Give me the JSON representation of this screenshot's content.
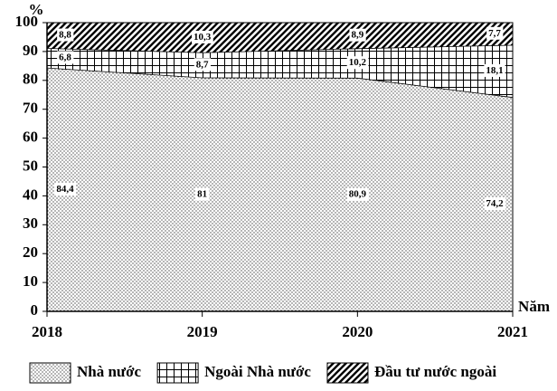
{
  "chart_data": {
    "type": "stacked-area",
    "x": [
      2018,
      2019,
      2020,
      2021
    ],
    "xlim": [
      2018,
      2021
    ],
    "xticks": [
      2018,
      2019,
      2020,
      2021
    ],
    "ylim": [
      0,
      100
    ],
    "yticks": [
      0,
      10,
      20,
      30,
      40,
      50,
      60,
      70,
      80,
      90,
      100
    ],
    "y_label": "%",
    "x_label": "Năm",
    "series": [
      {
        "name": "Nhà nước",
        "color": "#000000",
        "pattern": "dots",
        "values": [
          84.4,
          81,
          80.9,
          74.2
        ],
        "value_labels": [
          "84,4",
          "81",
          "80,9",
          "74,2"
        ]
      },
      {
        "name": "Ngoài Nhà nước",
        "color": "#000000",
        "pattern": "grid",
        "values": [
          6.8,
          8.7,
          10.2,
          18.1
        ],
        "value_labels": [
          "6,8",
          "8,7",
          "10,2",
          "18,1"
        ]
      },
      {
        "name": "Đầu tư nước ngoài",
        "color": "#000000",
        "pattern": "hatch",
        "values": [
          8.8,
          10.3,
          8.9,
          7.7
        ],
        "value_labels": [
          "8,8",
          "10,3",
          "8,9",
          "7,7"
        ]
      }
    ],
    "legend": "bottom"
  }
}
